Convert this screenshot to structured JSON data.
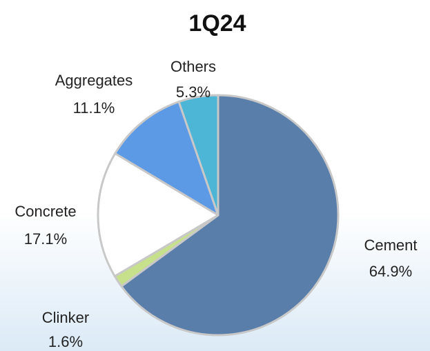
{
  "chart_data": {
    "type": "pie",
    "title": "1Q24",
    "categories": [
      "Cement",
      "Clinker",
      "Concrete",
      "Aggregates",
      "Others"
    ],
    "values": [
      64.9,
      1.6,
      17.1,
      11.1,
      5.3
    ],
    "value_labels": [
      "64.9%",
      "1.6%",
      "17.1%",
      "11.1%",
      "5.3%"
    ],
    "colors": [
      "#5a7eaa",
      "#c6e08c",
      "#ffffff",
      "#5c9ae6",
      "#4db6d6"
    ]
  }
}
